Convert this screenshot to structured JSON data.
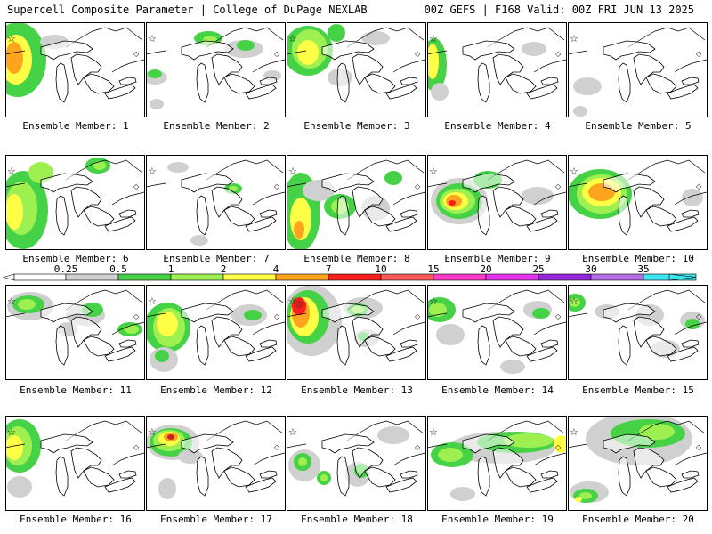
{
  "header": {
    "left": "Supercell Composite Parameter | College of DuPage NEXLAB",
    "right": "00Z GEFS | F168 Valid: 00Z FRI JUN 13 2025"
  },
  "colorbar": {
    "ticks": [
      "0.25",
      "0.5",
      "1",
      "2",
      "4",
      "7",
      "10",
      "15",
      "20",
      "25",
      "30",
      "35"
    ],
    "colors": [
      "#d0d0d0",
      "#46d246",
      "#9ef050",
      "#ffff46",
      "#ffa41e",
      "#ff1e1e",
      "#ff5a5a",
      "#ff3cc8",
      "#e632f0",
      "#9628dc",
      "#b46ee6",
      "#3ce6f0"
    ]
  },
  "members": [
    {
      "label": "Ensemble Member: 1"
    },
    {
      "label": "Ensemble Member: 2"
    },
    {
      "label": "Ensemble Member: 3"
    },
    {
      "label": "Ensemble Member: 4"
    },
    {
      "label": "Ensemble Member: 5"
    },
    {
      "label": "Ensemble Member: 6"
    },
    {
      "label": "Ensemble Member: 7"
    },
    {
      "label": "Ensemble Member: 8"
    },
    {
      "label": "Ensemble Member: 9"
    },
    {
      "label": "Ensemble Member: 10"
    },
    {
      "label": "Ensemble Member: 11"
    },
    {
      "label": "Ensemble Member: 12"
    },
    {
      "label": "Ensemble Member: 13"
    },
    {
      "label": "Ensemble Member: 14"
    },
    {
      "label": "Ensemble Member: 15"
    },
    {
      "label": "Ensemble Member: 16"
    },
    {
      "label": "Ensemble Member: 17"
    },
    {
      "label": "Ensemble Member: 18"
    },
    {
      "label": "Ensemble Member: 19"
    },
    {
      "label": "Ensemble Member: 20"
    }
  ]
}
